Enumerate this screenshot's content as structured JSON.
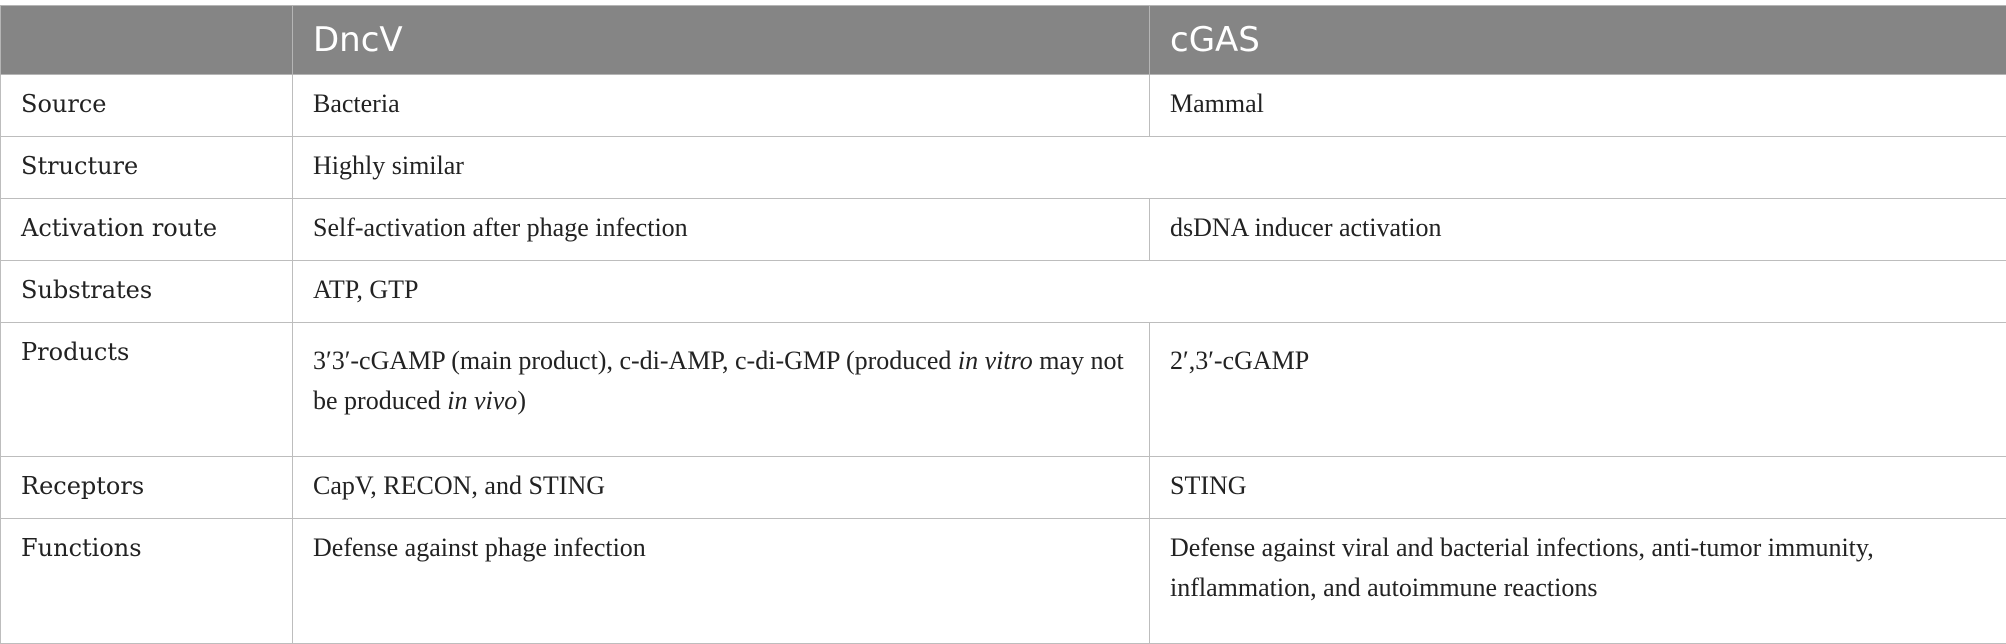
{
  "table": {
    "headers": [
      "",
      "DncV",
      "cGAS"
    ],
    "rows": [
      {
        "label": "Source",
        "dncv": "Bacteria",
        "cgas": "Mammal"
      },
      {
        "label": "Structure",
        "merged": "Highly similar"
      },
      {
        "label": "Activation route",
        "dncv": "Self-activation after phage infection",
        "cgas": "dsDNA inducer activation"
      },
      {
        "label": "Substrates",
        "merged": "ATP, GTP"
      },
      {
        "label": "Products",
        "dncv_parts": [
          "3′3′-cGAMP (main product), c-di-AMP, c-di-GMP (produced ",
          "in vitro",
          " may not be produced ",
          "in vivo",
          ")"
        ],
        "cgas": "2′,3′-cGAMP"
      },
      {
        "label": "Receptors",
        "dncv": "CapV, RECON, and STING",
        "cgas": "STING"
      },
      {
        "label": "Functions",
        "dncv": "Defense against phage infection",
        "cgas": "Defense against viral and bacterial infections, anti-tumor immunity, inflammation, and autoimmune reactions"
      }
    ]
  }
}
